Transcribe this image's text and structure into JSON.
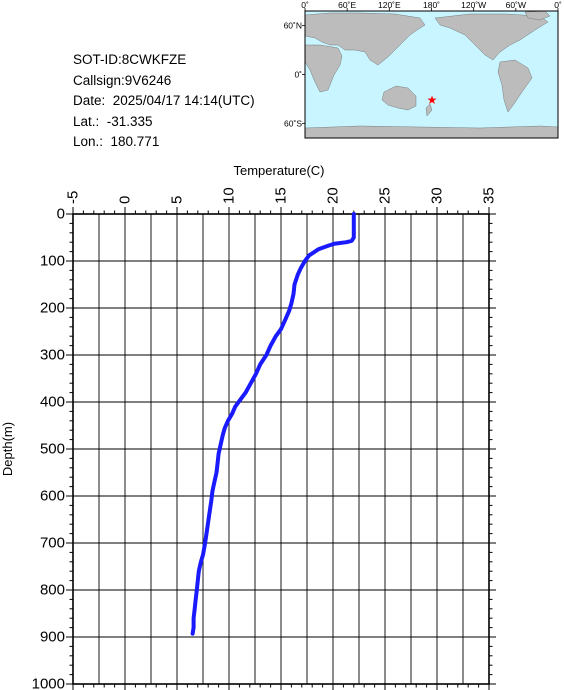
{
  "info": {
    "sot_id": "SOT-ID:8CWKFZE",
    "callsign": "Callsign:9V6246",
    "date": "Date:  2025/04/17 14:14(UTC)",
    "lat": "Lat.:  -31.335",
    "lon": "Lon.:  180.771"
  },
  "map": {
    "lon_labels": [
      "0˚",
      "60˚E",
      "120˚E",
      "180˚",
      "120˚W",
      "60˚W",
      "0˚"
    ],
    "lat_labels": [
      "60˚N",
      "0˚",
      "60˚S"
    ],
    "ocean_color": "#c8f5ff",
    "land_color": "#bcbcbc",
    "marker_color": "#ff0000",
    "marker_icon": "star-icon",
    "marker": {
      "lon": 180.771,
      "lat": -31.335
    }
  },
  "chart_data": {
    "type": "line",
    "title": "",
    "xlabel": "Temperature(C)",
    "ylabel": "Depth(m)",
    "xlim": [
      -5,
      35
    ],
    "ylim": [
      0,
      1000
    ],
    "y_inverted": true,
    "x_axis_position": "top",
    "x_ticks": [
      -5,
      0,
      5,
      10,
      15,
      20,
      25,
      30,
      35
    ],
    "y_ticks": [
      0,
      100,
      200,
      300,
      400,
      500,
      600,
      700,
      800,
      900,
      1000
    ],
    "grid": true,
    "line_color": "#1a1aff",
    "series": [
      {
        "x": [
          22.0,
          22.0,
          22.0,
          21.8,
          21.3,
          20.2,
          19.6,
          18.6,
          17.7,
          17.3,
          16.9,
          16.6,
          16.3,
          16.2,
          16.0,
          15.8,
          15.4,
          15.0,
          14.5,
          14.0,
          13.6,
          13.0,
          12.6,
          12.1,
          11.6,
          11.1,
          10.6,
          10.3,
          9.9,
          9.6,
          9.4,
          9.2,
          9.0,
          8.9,
          8.8,
          8.6,
          8.4,
          8.3,
          8.1,
          7.9,
          7.7,
          7.5,
          7.3,
          7.1,
          7.0,
          6.9,
          6.8,
          6.7,
          6.6,
          6.6,
          6.5
        ],
        "y": [
          0,
          20,
          50,
          57,
          60,
          63,
          67,
          75,
          88,
          100,
          115,
          130,
          150,
          170,
          190,
          205,
          225,
          245,
          260,
          280,
          300,
          320,
          340,
          360,
          380,
          395,
          410,
          425,
          440,
          455,
          470,
          490,
          510,
          530,
          550,
          570,
          590,
          610,
          640,
          670,
          700,
          725,
          740,
          760,
          780,
          800,
          820,
          840,
          860,
          880,
          893
        ]
      }
    ]
  }
}
